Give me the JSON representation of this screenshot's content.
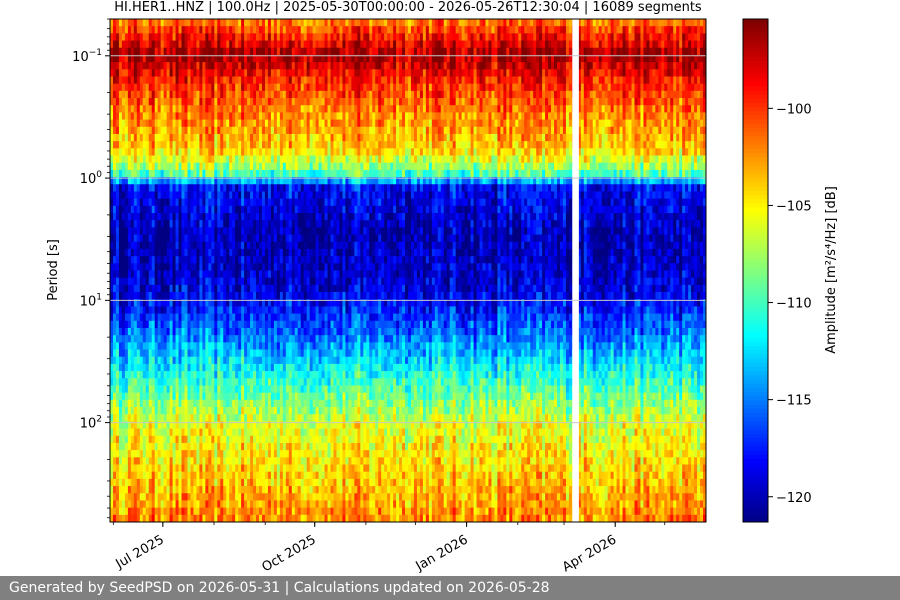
{
  "chart_data": {
    "type": "heatmap",
    "title": "HI.HER1..HNZ | 100.0Hz | 2025-05-30T00:00:00 - 2026-05-26T12:30:04 | 16089 segments",
    "ylabel": "Period [s]",
    "y_scale": "log",
    "y_inverted": true,
    "ylim": [
      0.05,
      650
    ],
    "y_ticks": [
      {
        "value": 0.1,
        "base": "10",
        "exp": "−1"
      },
      {
        "value": 1,
        "base": "10",
        "exp": "0"
      },
      {
        "value": 10,
        "base": "10",
        "exp": "1"
      },
      {
        "value": 100,
        "base": "10",
        "exp": "2"
      }
    ],
    "x_start": "2025-05-30",
    "x_end": "2026-05-26",
    "x_ticks": [
      {
        "date": "2025-07-01",
        "label": "Jul 2025"
      },
      {
        "date": "2025-10-01",
        "label": "Oct 2025"
      },
      {
        "date": "2026-01-01",
        "label": "Jan 2026"
      },
      {
        "date": "2026-04-01",
        "label": "Apr 2026"
      }
    ],
    "data_gaps": [
      "2026-03-06",
      "2026-03-10"
    ],
    "gridlines": true,
    "colormap": "jet",
    "colorbar": {
      "label": "Amplitude [m²/s⁴/Hz] [dB]",
      "range": [
        -121.3,
        -95.4
      ],
      "ticks": [
        -100,
        -105,
        -110,
        -115,
        -120
      ]
    },
    "profile": [
      {
        "period": 0.05,
        "db": -102
      },
      {
        "period": 0.07,
        "db": -99
      },
      {
        "period": 0.1,
        "db": -96
      },
      {
        "period": 0.15,
        "db": -99
      },
      {
        "period": 0.3,
        "db": -102
      },
      {
        "period": 0.6,
        "db": -104
      },
      {
        "period": 0.9,
        "db": -109
      },
      {
        "period": 1.2,
        "db": -118
      },
      {
        "period": 3,
        "db": -120
      },
      {
        "period": 8,
        "db": -119
      },
      {
        "period": 20,
        "db": -115
      },
      {
        "period": 40,
        "db": -111
      },
      {
        "period": 100,
        "db": -106
      },
      {
        "period": 650,
        "db": -102
      }
    ]
  },
  "footer": {
    "text": "Generated by SeedPSD on 2026-05-31 | Calculations updated on 2026-05-28"
  },
  "colors": {
    "gap": "#ffffff",
    "gridline": "#c8c8c8",
    "footer_bg": "#808080"
  }
}
